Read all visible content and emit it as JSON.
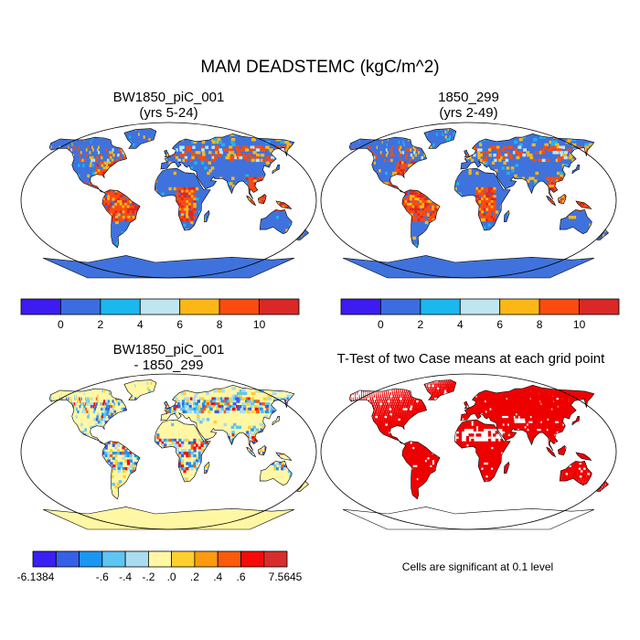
{
  "title": "MAM DEADSTEMC (kgC/m^2)",
  "panels": [
    {
      "id": "case1",
      "title_line1": "BW1850_piC_001",
      "title_line2": "(yrs 5-24)",
      "type": "mean"
    },
    {
      "id": "case2",
      "title_line1": "1850_299",
      "title_line2": "(yrs 2-49)",
      "type": "mean"
    },
    {
      "id": "diff",
      "title_line1": "BW1850_piC_001",
      "title_line2": "- 1850_299",
      "type": "difference"
    },
    {
      "id": "ttest",
      "title_line1": "T-Test of two Case means at each grid point",
      "type": "significance"
    }
  ],
  "colorbar_mean": {
    "colors": [
      "#3c1cf0",
      "#3b6de0",
      "#1bb7ef",
      "#bfe6f0",
      "#fcb717",
      "#fb4b0f",
      "#d92826"
    ],
    "labels": [
      "0",
      "2",
      "4",
      "6",
      "8",
      "10"
    ]
  },
  "colorbar_diff": {
    "colors": [
      "#3a20f3",
      "#3560e8",
      "#1c96f3",
      "#5ec5f2",
      "#aadcf0",
      "#fff7a3",
      "#fdd030",
      "#fd9a10",
      "#fa5a0a",
      "#f80a0a",
      "#d92d2d"
    ],
    "labels": [
      "-6.1384",
      "-.6",
      "-.4",
      "-.2",
      ".0",
      ".2",
      ".4",
      ".6",
      "7.5645"
    ]
  },
  "significance": {
    "color": "#ee0000",
    "note": "Cells are significant at 0.1 level"
  },
  "map_colors": {
    "ocean": "#ffffff",
    "land_base": "#3f72dc",
    "antarctica": "#3f72dc",
    "diff_land": "#fff7a3",
    "coast": "#000000"
  }
}
